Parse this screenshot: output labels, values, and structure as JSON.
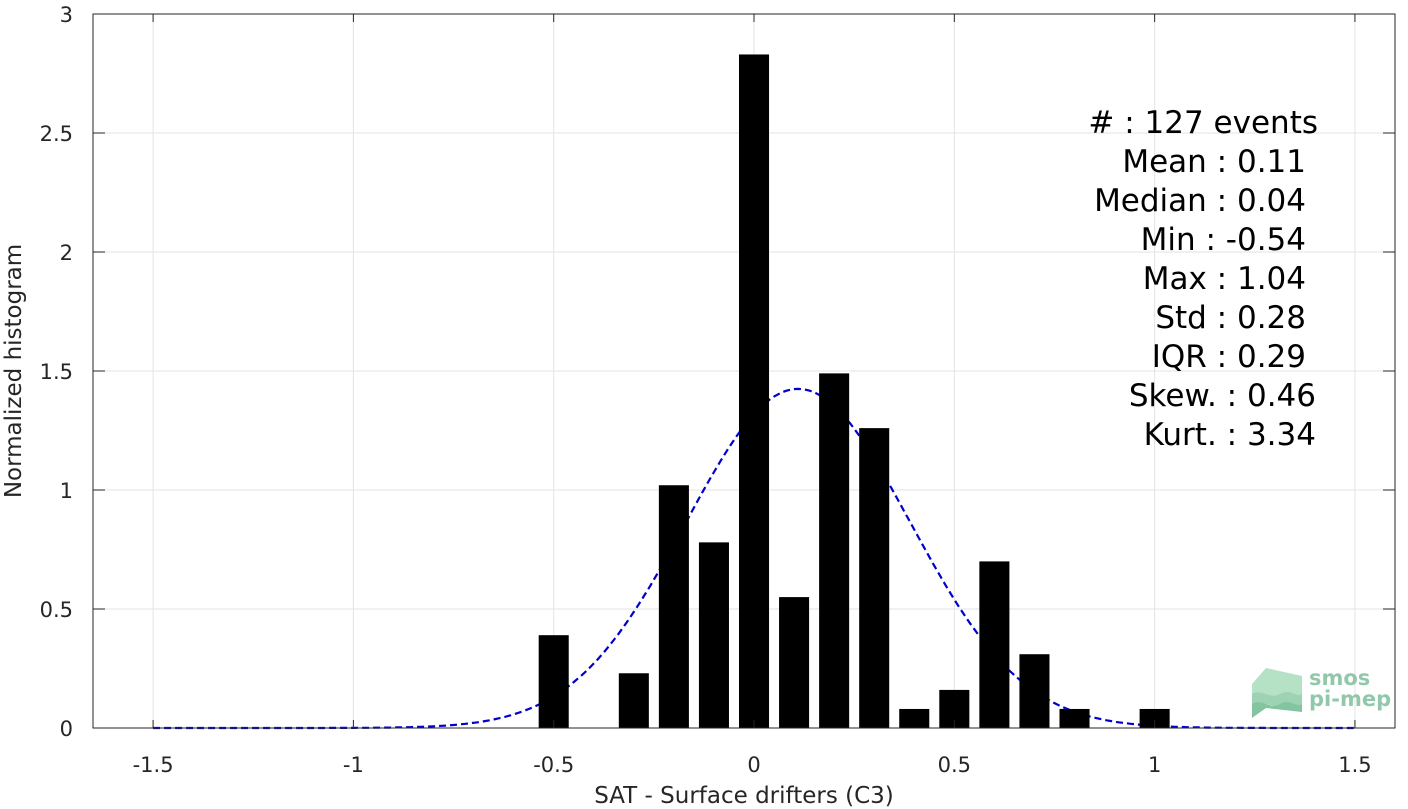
{
  "chart_data": {
    "type": "bar",
    "xlabel": "SAT - Surface drifters (C3)",
    "ylabel": "Normalized histogram",
    "xlim": [
      -1.65,
      1.6
    ],
    "ylim": [
      0,
      3
    ],
    "xticks": [
      -1.5,
      -1,
      -0.5,
      0,
      0.5,
      1,
      1.5
    ],
    "xtick_labels": [
      "-1.5",
      "-1",
      "-0.5",
      "0",
      "0.5",
      "1",
      "1.5"
    ],
    "yticks": [
      0,
      0.5,
      1,
      1.5,
      2,
      2.5,
      3
    ],
    "ytick_labels": [
      "0",
      "0.5",
      "1",
      "1.5",
      "2",
      "2.5",
      "3"
    ],
    "grid": true,
    "bar_width": 0.075,
    "bar_color": "#000000",
    "bars": [
      {
        "x": -0.5,
        "y": 0.39
      },
      {
        "x": -0.3,
        "y": 0.23
      },
      {
        "x": -0.2,
        "y": 1.02
      },
      {
        "x": -0.1,
        "y": 0.78
      },
      {
        "x": 0.0,
        "y": 2.83
      },
      {
        "x": 0.1,
        "y": 0.55
      },
      {
        "x": 0.2,
        "y": 1.49
      },
      {
        "x": 0.3,
        "y": 1.26
      },
      {
        "x": 0.4,
        "y": 0.08
      },
      {
        "x": 0.5,
        "y": 0.16
      },
      {
        "x": 0.6,
        "y": 0.7
      },
      {
        "x": 0.7,
        "y": 0.31
      },
      {
        "x": 0.8,
        "y": 0.08
      },
      {
        "x": 1.0,
        "y": 0.08
      }
    ],
    "fit_curve": {
      "style": "dashed",
      "color": "#0000cc",
      "mean": 0.11,
      "std": 0.28,
      "x_range": [
        -1.5,
        1.5
      ]
    },
    "stats_lines": [
      "#  : 127 events",
      "Mean : 0.11",
      "Median : 0.04",
      "Min : -0.54",
      "Max : 1.04",
      "Std : 0.28",
      "IQR : 0.29",
      "Skew. : 0.46",
      "Kurt. : 3.34"
    ]
  },
  "logo": {
    "line1": "smos",
    "line2": "pi-mep",
    "color": "#7fbf9c"
  }
}
